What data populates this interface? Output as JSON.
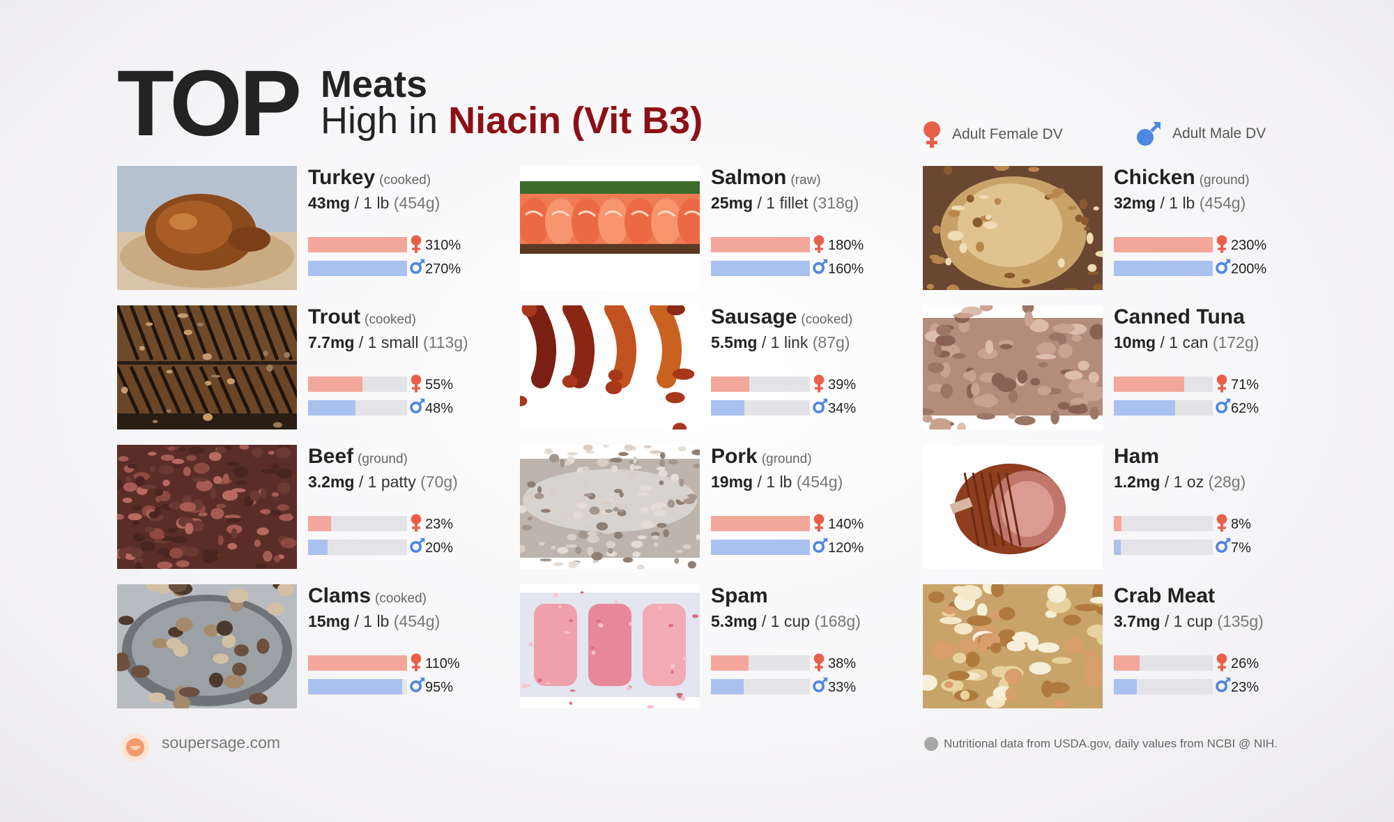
{
  "header": {
    "top": "TOP",
    "subtitle_line1": "Meats",
    "subtitle_line2_prefix": "High in",
    "nutrient": "Niacin (Vit B3)"
  },
  "legend": {
    "female": "Adult Female DV",
    "male": "Adult Male DV",
    "female_color": "#e8604a",
    "male_color": "#4f86e0"
  },
  "colors": {
    "female_bar": "#f2a79a",
    "male_bar": "#a9c1ef",
    "track": "#e4e4e8",
    "accent": "#8c1116"
  },
  "chart_data": {
    "type": "bar",
    "bar_scale_max_percent": 100,
    "series": [
      {
        "name": "Adult Female DV",
        "values": [
          310,
          180,
          230,
          55,
          39,
          71,
          23,
          140,
          8,
          110,
          38,
          26
        ]
      },
      {
        "name": "Adult Male DV",
        "values": [
          270,
          160,
          200,
          48,
          34,
          62,
          20,
          120,
          7,
          95,
          33,
          23
        ]
      }
    ],
    "items": [
      {
        "name": "Turkey",
        "prep": "(cooked)",
        "amount": "43mg",
        "serving": " / 1 lb ",
        "grams": "(454g)",
        "female": "310%",
        "male": "270%",
        "female_pct": 310,
        "male_pct": 270
      },
      {
        "name": "Salmon",
        "prep": "(raw)",
        "amount": "25mg",
        "serving": " / 1 fillet ",
        "grams": "(318g)",
        "female": "180%",
        "male": "160%",
        "female_pct": 180,
        "male_pct": 160
      },
      {
        "name": "Chicken",
        "prep": "(ground)",
        "amount": "32mg",
        "serving": " / 1 lb ",
        "grams": "(454g)",
        "female": "230%",
        "male": "200%",
        "female_pct": 230,
        "male_pct": 200
      },
      {
        "name": "Trout",
        "prep": "(cooked)",
        "amount": "7.7mg",
        "serving": " / 1 small ",
        "grams": "(113g)",
        "female": "55%",
        "male": "48%",
        "female_pct": 55,
        "male_pct": 48
      },
      {
        "name": "Sausage",
        "prep": "(cooked)",
        "amount": "5.5mg",
        "serving": " / 1 link ",
        "grams": "(87g)",
        "female": "39%",
        "male": "34%",
        "female_pct": 39,
        "male_pct": 34
      },
      {
        "name": "Canned Tuna",
        "prep": "",
        "amount": "10mg",
        "serving": " / 1 can ",
        "grams": "(172g)",
        "female": "71%",
        "male": "62%",
        "female_pct": 71,
        "male_pct": 62
      },
      {
        "name": "Beef",
        "prep": "(ground)",
        "amount": "3.2mg",
        "serving": " / 1 patty ",
        "grams": "(70g)",
        "female": "23%",
        "male": "20%",
        "female_pct": 23,
        "male_pct": 20
      },
      {
        "name": "Pork",
        "prep": "(ground)",
        "amount": "19mg",
        "serving": " / 1 lb ",
        "grams": "(454g)",
        "female": "140%",
        "male": "120%",
        "female_pct": 140,
        "male_pct": 120
      },
      {
        "name": "Ham",
        "prep": "",
        "amount": "1.2mg",
        "serving": " / 1 oz ",
        "grams": "(28g)",
        "female": "8%",
        "male": "7%",
        "female_pct": 8,
        "male_pct": 7
      },
      {
        "name": "Clams",
        "prep": "(cooked)",
        "amount": "15mg",
        "serving": " / 1 lb ",
        "grams": "(454g)",
        "female": "110%",
        "male": "95%",
        "female_pct": 110,
        "male_pct": 95
      },
      {
        "name": "Spam",
        "prep": "",
        "amount": "5.3mg",
        "serving": " / 1 cup ",
        "grams": "(168g)",
        "female": "38%",
        "male": "33%",
        "female_pct": 38,
        "male_pct": 33
      },
      {
        "name": "Crab Meat",
        "prep": "",
        "amount": "3.7mg",
        "serving": " / 1 cup ",
        "grams": "(135g)",
        "female": "26%",
        "male": "23%",
        "female_pct": 26,
        "male_pct": 23
      }
    ]
  },
  "footer": {
    "site": "soupersage.com",
    "note": "Nutritional data from USDA.gov, daily values from NCBI @ NIH."
  }
}
